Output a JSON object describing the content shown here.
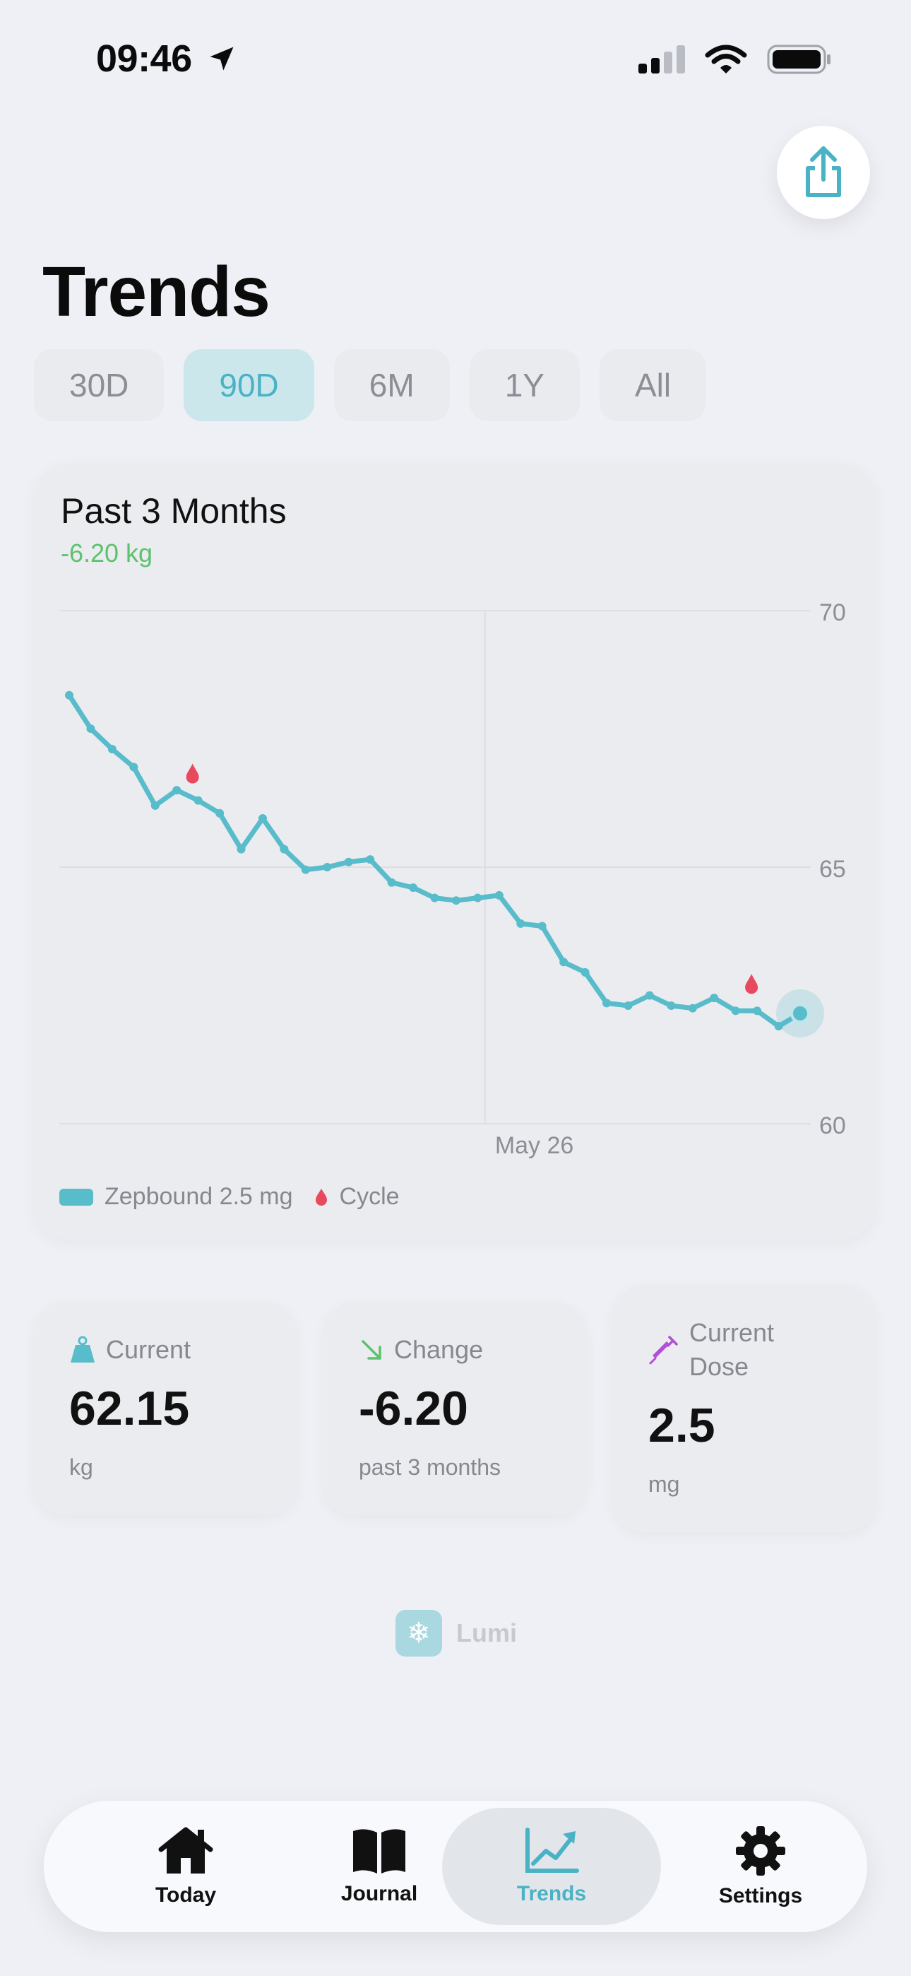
{
  "status": {
    "time": "09:46",
    "location_icon": "location-arrow-icon",
    "signal_icon": "cellular-signal-icon",
    "wifi_icon": "wifi-icon",
    "battery_icon": "battery-icon"
  },
  "header": {
    "title": "Trends",
    "share_icon": "share-icon"
  },
  "ranges": [
    {
      "label": "30D",
      "active": false
    },
    {
      "label": "90D",
      "active": true
    },
    {
      "label": "6M",
      "active": false
    },
    {
      "label": "1Y",
      "active": false
    },
    {
      "label": "All",
      "active": false
    }
  ],
  "chart": {
    "title": "Past 3 Months",
    "change": "-6.20 kg",
    "accent_color": "#58bccb",
    "positive_color": "#5cc26c",
    "cycle_color": "#e8495d",
    "legend": [
      {
        "label": "Zepbound 2.5 mg",
        "icon": "dose-swatch"
      },
      {
        "label": "Cycle",
        "icon": "drop-icon"
      }
    ]
  },
  "chart_data": {
    "type": "line",
    "ylim": [
      60,
      70
    ],
    "y_ticks": [
      "70",
      "65",
      "60"
    ],
    "x_label": "May 26",
    "x_label_index": 20,
    "series": [
      {
        "values": [
          68.35,
          67.7,
          67.3,
          66.95,
          66.2,
          66.5,
          66.3,
          66.05,
          65.35,
          65.95,
          65.35,
          64.95,
          65.0,
          65.1,
          65.15,
          64.7,
          64.6,
          64.4,
          64.35,
          64.4,
          64.45,
          63.9,
          63.85,
          63.15,
          62.95,
          62.35,
          62.3,
          62.5,
          62.3,
          62.25,
          62.45,
          62.2,
          62.2,
          61.9,
          62.15
        ]
      }
    ],
    "cycle_markers": [
      6,
      32
    ]
  },
  "stats": [
    {
      "icon": "weight-icon",
      "label": "Current",
      "value": "62.15",
      "unit": "kg"
    },
    {
      "icon": "trend-down-icon",
      "label": "Change",
      "value": "-6.20",
      "unit": "past 3 months"
    },
    {
      "icon": "syringe-icon",
      "label": "Current Dose",
      "label_line1": "Current",
      "label_line2": "Dose",
      "value": "2.5",
      "unit": "mg"
    }
  ],
  "watermark": {
    "text": "Lumi",
    "icon": "snowflake-icon"
  },
  "tabs": [
    {
      "label": "Today",
      "icon": "house-icon",
      "active": false
    },
    {
      "label": "Journal",
      "icon": "book-icon",
      "active": false
    },
    {
      "label": "Trends",
      "icon": "chart-icon",
      "active": true
    },
    {
      "label": "Settings",
      "icon": "gear-icon",
      "active": false
    }
  ]
}
